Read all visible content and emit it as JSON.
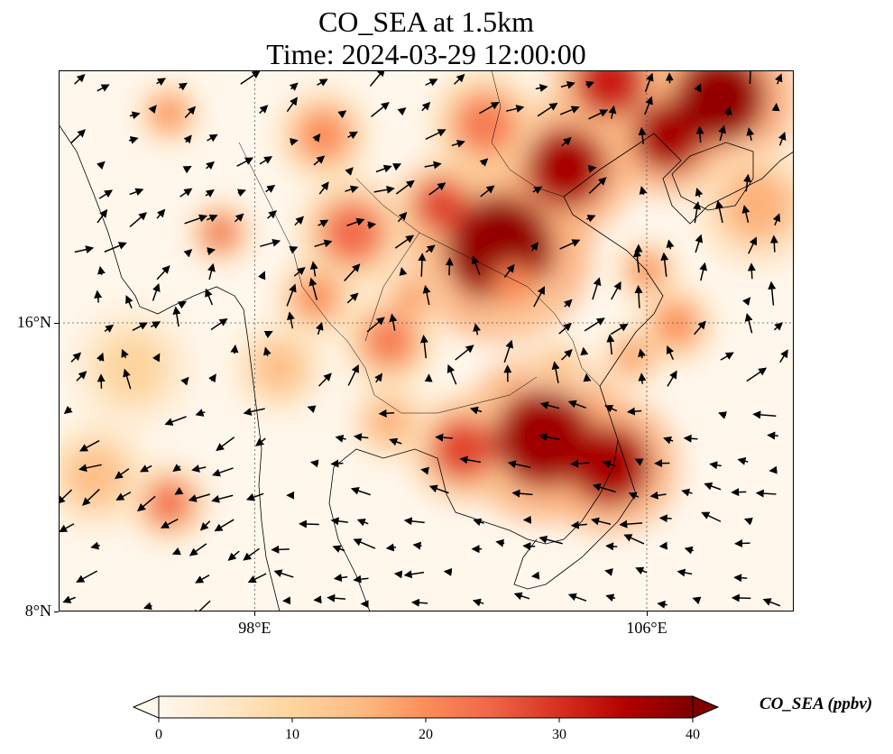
{
  "title": {
    "line1": "CO_SEA at 1.5km",
    "line2": "Time: 2024-03-29 12:00:00"
  },
  "map": {
    "lon_range": [
      94,
      109
    ],
    "lat_range": [
      8,
      23
    ],
    "lon_ticks": [
      {
        "value": 98,
        "label": "98°E"
      },
      {
        "value": 106,
        "label": "106°E"
      }
    ],
    "lat_ticks": [
      {
        "value": 16,
        "label": "16°N"
      },
      {
        "value": 8,
        "label": "8°N"
      }
    ],
    "gridlines": "dotted",
    "field_name": "CO_SEA",
    "units": "ppbv",
    "wind_vectors": true
  },
  "colorbar": {
    "title": "CO_SEA (ppbv)",
    "min": 0,
    "max": 40,
    "ticks": [
      "0",
      "10",
      "20",
      "30",
      "40"
    ],
    "colormap": "OrRd",
    "extend": "both",
    "colors": [
      "#fff7ec",
      "#fee8c8",
      "#fdd49e",
      "#fdbb84",
      "#fc8d59",
      "#ef6548",
      "#d7301f",
      "#b30000",
      "#7f0000"
    ]
  }
}
